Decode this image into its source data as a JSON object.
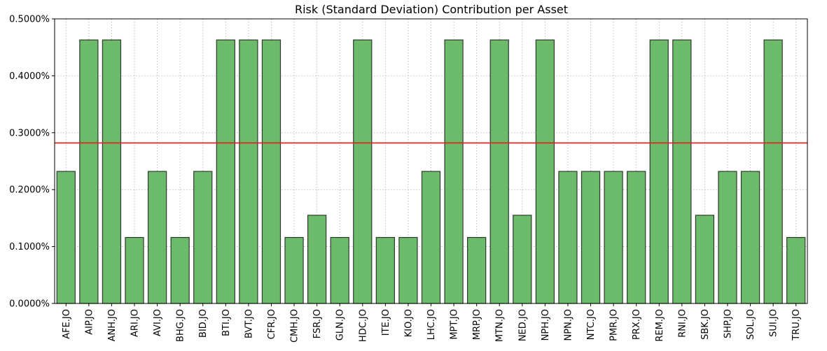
{
  "chart_data": {
    "type": "bar",
    "title": "Risk (Standard Deviation) Contribution per Asset",
    "xlabel": "",
    "ylabel": "",
    "categories": [
      "AFE.JO",
      "AIP.JO",
      "ANH.JO",
      "ARI.JO",
      "AVI.JO",
      "BHG.JO",
      "BID.JO",
      "BTI.JO",
      "BVT.JO",
      "CFR.JO",
      "CMH.JO",
      "FSR.JO",
      "GLN.JO",
      "HDC.JO",
      "ITE.JO",
      "KIO.JO",
      "LHC.JO",
      "MPT.JO",
      "MRP.JO",
      "MTN.JO",
      "NED.JO",
      "NPH.JO",
      "NPN.JO",
      "NTC.JO",
      "PMR.JO",
      "PRX.JO",
      "REM.JO",
      "RNI.JO",
      "SBK.JO",
      "SHP.JO",
      "SOL.JO",
      "SUI.JO",
      "TRU.JO"
    ],
    "values": [
      0.00232,
      0.00463,
      0.00463,
      0.00116,
      0.00232,
      0.00116,
      0.00232,
      0.00463,
      0.00463,
      0.00463,
      0.00116,
      0.00155,
      0.00116,
      0.00463,
      0.00116,
      0.00116,
      0.00232,
      0.00463,
      0.00116,
      0.00463,
      0.00155,
      0.00463,
      0.00232,
      0.00232,
      0.00232,
      0.00232,
      0.00463,
      0.00463,
      0.00155,
      0.00232,
      0.00232,
      0.00463,
      0.00116
    ],
    "reference_line": 0.00282,
    "ylim": [
      0,
      0.005
    ],
    "yticks": [
      0,
      0.001,
      0.002,
      0.003,
      0.004,
      0.005
    ],
    "ytick_labels": [
      "0.0000%",
      "0.1000%",
      "0.2000%",
      "0.3000%",
      "0.4000%",
      "0.5000%"
    ],
    "grid": true,
    "colors": {
      "bar": "#6cbb6a",
      "bar_edge": "#2f3a2f",
      "reference_line": "#e41a1c",
      "grid": "#b0b0b0"
    }
  }
}
